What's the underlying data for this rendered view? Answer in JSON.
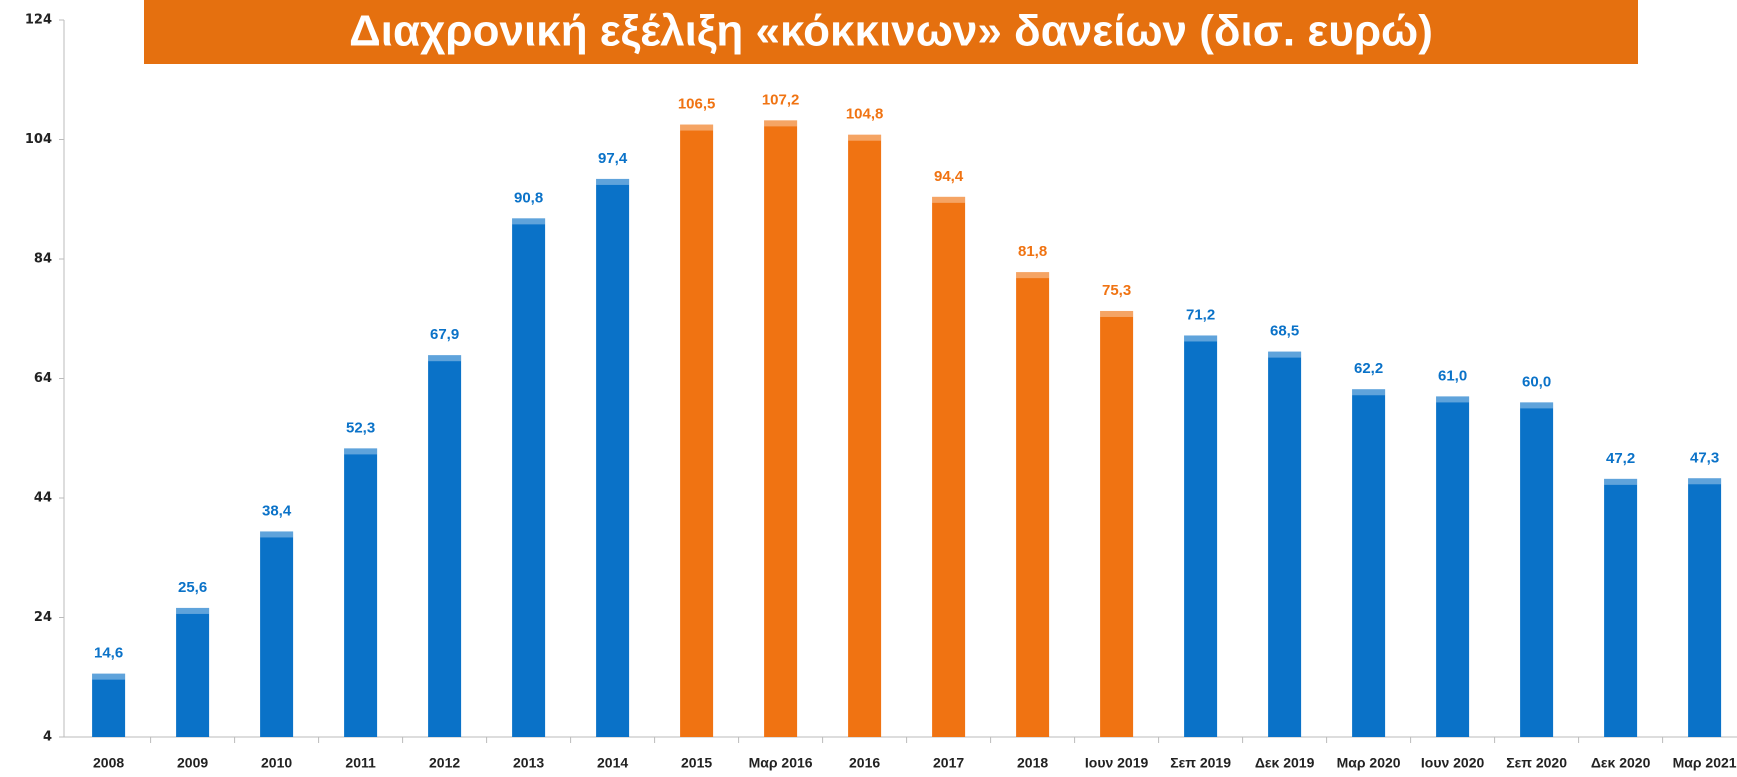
{
  "chart_data": {
    "type": "bar",
    "title": "Διαχρονική εξέλιξη «κόκκινων» δανείων (δισ. ευρώ)",
    "categories": [
      "2008",
      "2009",
      "2010",
      "2011",
      "2012",
      "2013",
      "2014",
      "2015",
      "Μαρ 2016",
      "2016",
      "2017",
      "2018",
      "Ιουν 2019",
      "Σεπ 2019",
      "Δεκ 2019",
      "Μαρ 2020",
      "Ιουν 2020",
      "Σεπ 2020",
      "Δεκ 2020",
      "Μαρ 2021"
    ],
    "values": [
      14.6,
      25.6,
      38.4,
      52.3,
      67.9,
      90.8,
      97.4,
      106.5,
      107.2,
      104.8,
      94.4,
      81.8,
      75.3,
      71.2,
      68.5,
      62.2,
      61.0,
      60.0,
      47.2,
      47.3
    ],
    "value_labels": [
      "14,6",
      "25,6",
      "38,4",
      "52,3",
      "67,9",
      "90,8",
      "97,4",
      "106,5",
      "107,2",
      "104,8",
      "94,4",
      "81,8",
      "75,3",
      "71,2",
      "68,5",
      "62,2",
      "61,0",
      "60,0",
      "47,2",
      "47,3"
    ],
    "colors": [
      "#0a72c8",
      "#0a72c8",
      "#0a72c8",
      "#0a72c8",
      "#0a72c8",
      "#0a72c8",
      "#0a72c8",
      "#f07312",
      "#f07312",
      "#f07312",
      "#f07312",
      "#f07312",
      "#f07312",
      "#0a72c8",
      "#0a72c8",
      "#0a72c8",
      "#0a72c8",
      "#0a72c8",
      "#0a72c8",
      "#0a72c8"
    ],
    "ylim": [
      4,
      124
    ],
    "yticks": [
      4,
      24,
      44,
      64,
      84,
      104,
      124
    ],
    "grid": false
  }
}
